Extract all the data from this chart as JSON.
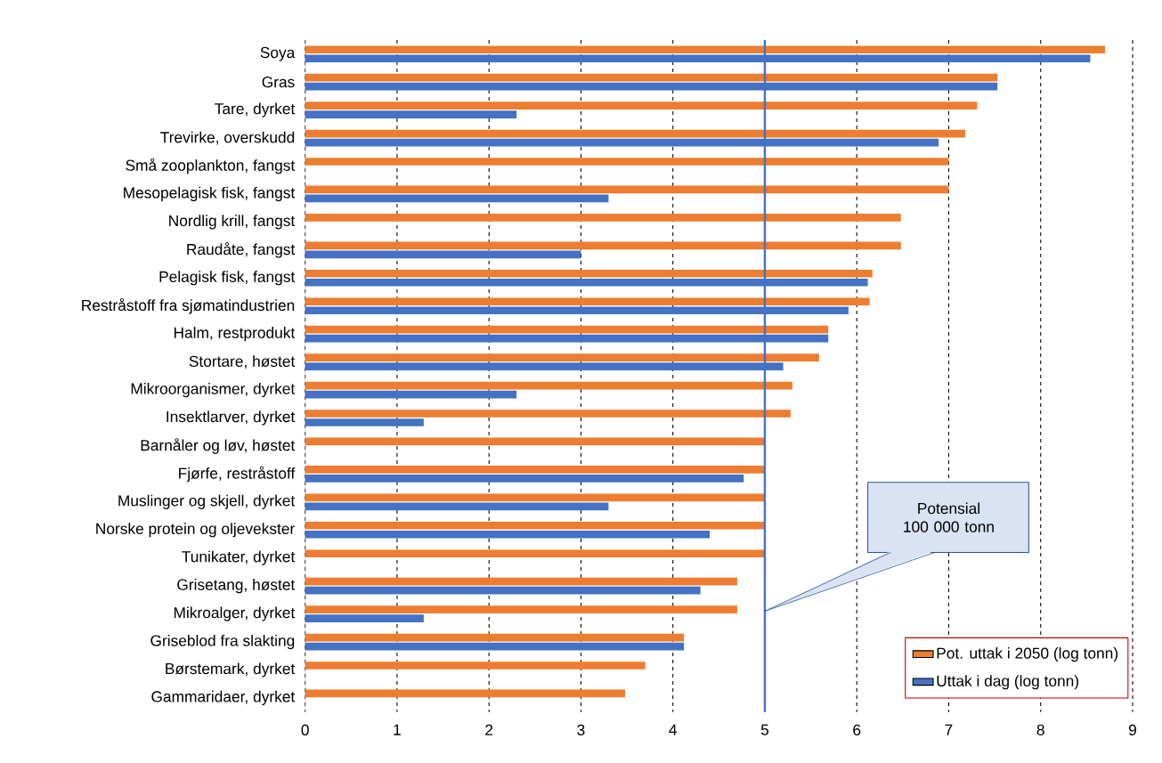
{
  "chart_data": {
    "type": "bar",
    "orientation": "horizontal",
    "categories": [
      "Soya",
      "Gras",
      "Tare, dyrket",
      "Trevirke, overskudd",
      "Små zooplankton, fangst",
      "Mesopelagisk fisk, fangst",
      "Nordlig krill, fangst",
      "Raudåte, fangst",
      "Pelagisk fisk, fangst",
      "Restråstoff fra sjømatindustrien",
      "Halm, restprodukt",
      "Stortare, høstet",
      "Mikroorganismer, dyrket",
      "Insektlarver, dyrket",
      "Barnåler og løv, høstet",
      "Fjørfe, restråstoff",
      "Muslinger og skjell, dyrket",
      "Norske protein og oljevekster",
      "Tunikater, dyrket",
      "Grisetang, høstet",
      "Mikroalger, dyrket",
      "Griseblod fra slakting",
      "Børstemark, dyrket",
      "Gammaridaer, dyrket"
    ],
    "series": [
      {
        "name": "Pot. uttak i 2050 (log tonn)",
        "color": "#ed7d31",
        "values": [
          8.7,
          7.53,
          7.31,
          7.18,
          7.0,
          7.0,
          6.48,
          6.48,
          6.17,
          6.14,
          5.69,
          5.59,
          5.3,
          5.28,
          5.0,
          5.0,
          5.0,
          5.0,
          5.0,
          4.7,
          4.7,
          4.12,
          3.7,
          3.48
        ]
      },
      {
        "name": "Uttak i dag (log tonn)",
        "color": "#4472c4",
        "values": [
          8.54,
          7.53,
          2.3,
          6.89,
          null,
          3.3,
          null,
          3.0,
          6.12,
          5.91,
          5.69,
          5.2,
          2.3,
          1.29,
          null,
          4.77,
          3.3,
          4.4,
          null,
          4.3,
          1.29,
          4.12,
          null,
          null
        ]
      }
    ],
    "xlim": [
      0,
      9
    ],
    "xticks": [
      0,
      1,
      2,
      3,
      4,
      5,
      6,
      7,
      8,
      9
    ],
    "grid": "x",
    "legend": "bottom right",
    "ref_lines": [
      {
        "axis": "x",
        "value": 5,
        "label": "Potensial 100 000 tonn",
        "color": "#4472c4"
      }
    ]
  }
}
